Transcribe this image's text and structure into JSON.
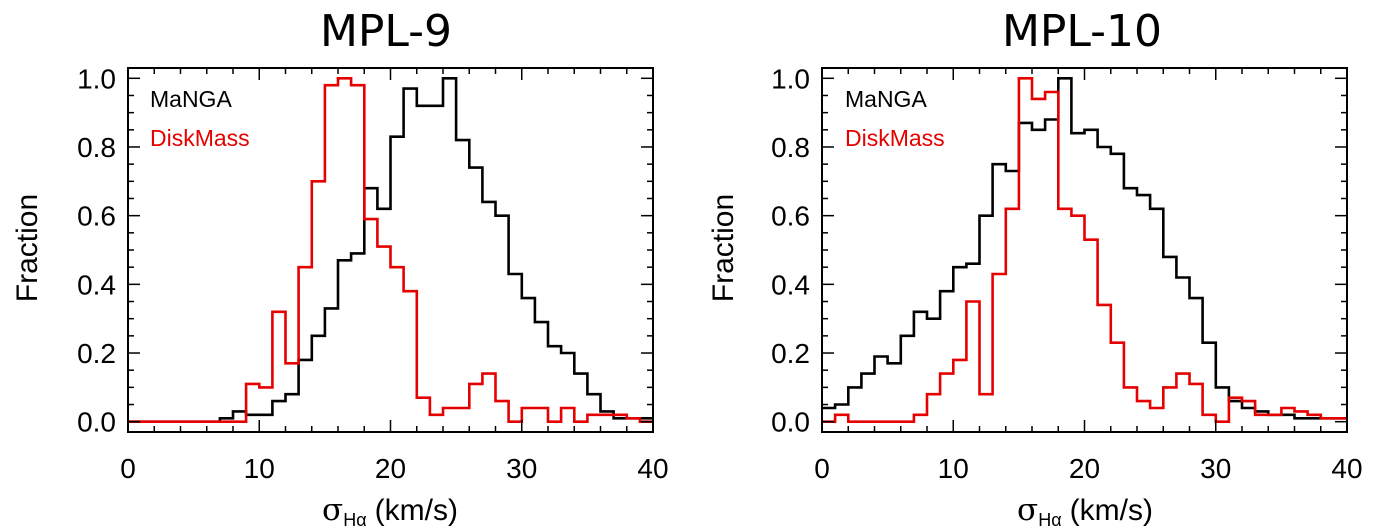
{
  "chart_data": [
    {
      "type": "histogram",
      "title": "MPL-9",
      "xlabel": "σ",
      "xlabel_sub": "Hα",
      "xlabel_unit": "(km/s)",
      "ylabel": "Fraction",
      "xlim": [
        0,
        40
      ],
      "ylim": [
        -0.03,
        1.03
      ],
      "xticks": [
        "0",
        "10",
        "20",
        "30",
        "40"
      ],
      "yticks": [
        "0.0",
        "0.2",
        "0.4",
        "0.6",
        "0.8",
        "1.0"
      ],
      "legend_position": "top-left",
      "bin_edges": [
        0,
        1,
        2,
        3,
        4,
        5,
        6,
        7,
        8,
        9,
        10,
        11,
        12,
        13,
        14,
        15,
        16,
        17,
        18,
        19,
        20,
        21,
        22,
        23,
        24,
        25,
        26,
        27,
        28,
        29,
        30,
        31,
        32,
        33,
        34,
        35,
        36,
        37,
        38,
        39,
        40
      ],
      "series": [
        {
          "name": "MaNGA",
          "color": "#000000",
          "values": [
            0,
            0,
            0,
            0,
            0,
            0,
            0,
            0.01,
            0.03,
            0.02,
            0.02,
            0.06,
            0.08,
            0.18,
            0.25,
            0.33,
            0.47,
            0.49,
            0.68,
            0.62,
            0.83,
            0.97,
            0.92,
            0.92,
            1.0,
            0.82,
            0.74,
            0.64,
            0.6,
            0.43,
            0.36,
            0.29,
            0.22,
            0.2,
            0.14,
            0.08,
            0.03,
            0.01,
            0.01,
            0.01
          ]
        },
        {
          "name": "DiskMass",
          "color": "#e60000",
          "values": [
            0,
            0,
            0,
            0,
            0,
            0,
            0,
            0,
            0,
            0.11,
            0.1,
            0.32,
            0.17,
            0.45,
            0.7,
            0.98,
            1.0,
            0.98,
            0.59,
            0.51,
            0.45,
            0.38,
            0.07,
            0.02,
            0.04,
            0.04,
            0.11,
            0.14,
            0.06,
            0,
            0.04,
            0.04,
            0,
            0.04,
            0,
            0.02,
            0.02,
            0.02,
            0.01,
            0
          ]
        }
      ]
    },
    {
      "type": "histogram",
      "title": "MPL-10",
      "xlabel": "σ",
      "xlabel_sub": "Hα",
      "xlabel_unit": "(km/s)",
      "ylabel": "Fraction",
      "xlim": [
        0,
        40
      ],
      "ylim": [
        -0.03,
        1.03
      ],
      "xticks": [
        "0",
        "10",
        "20",
        "30",
        "40"
      ],
      "yticks": [
        "0.0",
        "0.2",
        "0.4",
        "0.6",
        "0.8",
        "1.0"
      ],
      "legend_position": "top-left",
      "bin_edges": [
        0,
        1,
        2,
        3,
        4,
        5,
        6,
        7,
        8,
        9,
        10,
        11,
        12,
        13,
        14,
        15,
        16,
        17,
        18,
        19,
        20,
        21,
        22,
        23,
        24,
        25,
        26,
        27,
        28,
        29,
        30,
        31,
        32,
        33,
        34,
        35,
        36,
        37,
        38,
        39,
        40
      ],
      "series": [
        {
          "name": "MaNGA",
          "color": "#000000",
          "values": [
            0.04,
            0.05,
            0.1,
            0.14,
            0.19,
            0.17,
            0.25,
            0.32,
            0.3,
            0.38,
            0.45,
            0.46,
            0.6,
            0.75,
            0.73,
            0.87,
            0.85,
            0.88,
            1.0,
            0.84,
            0.85,
            0.8,
            0.78,
            0.68,
            0.66,
            0.62,
            0.48,
            0.42,
            0.36,
            0.23,
            0.1,
            0.06,
            0.04,
            0.03,
            0.02,
            0.02,
            0.01,
            0.01,
            0.01,
            0.01
          ]
        },
        {
          "name": "DiskMass",
          "color": "#e60000",
          "values": [
            0,
            0.02,
            0,
            0,
            0,
            0,
            0,
            0.02,
            0.08,
            0.14,
            0.18,
            0.35,
            0.08,
            0.43,
            0.62,
            1.0,
            0.94,
            0.96,
            0.62,
            0.6,
            0.53,
            0.34,
            0.23,
            0.1,
            0.06,
            0.04,
            0.1,
            0.14,
            0.11,
            0.02,
            0,
            0.07,
            0.06,
            0.02,
            0.02,
            0.04,
            0.03,
            0.02,
            0.01,
            0.01
          ]
        }
      ]
    }
  ]
}
